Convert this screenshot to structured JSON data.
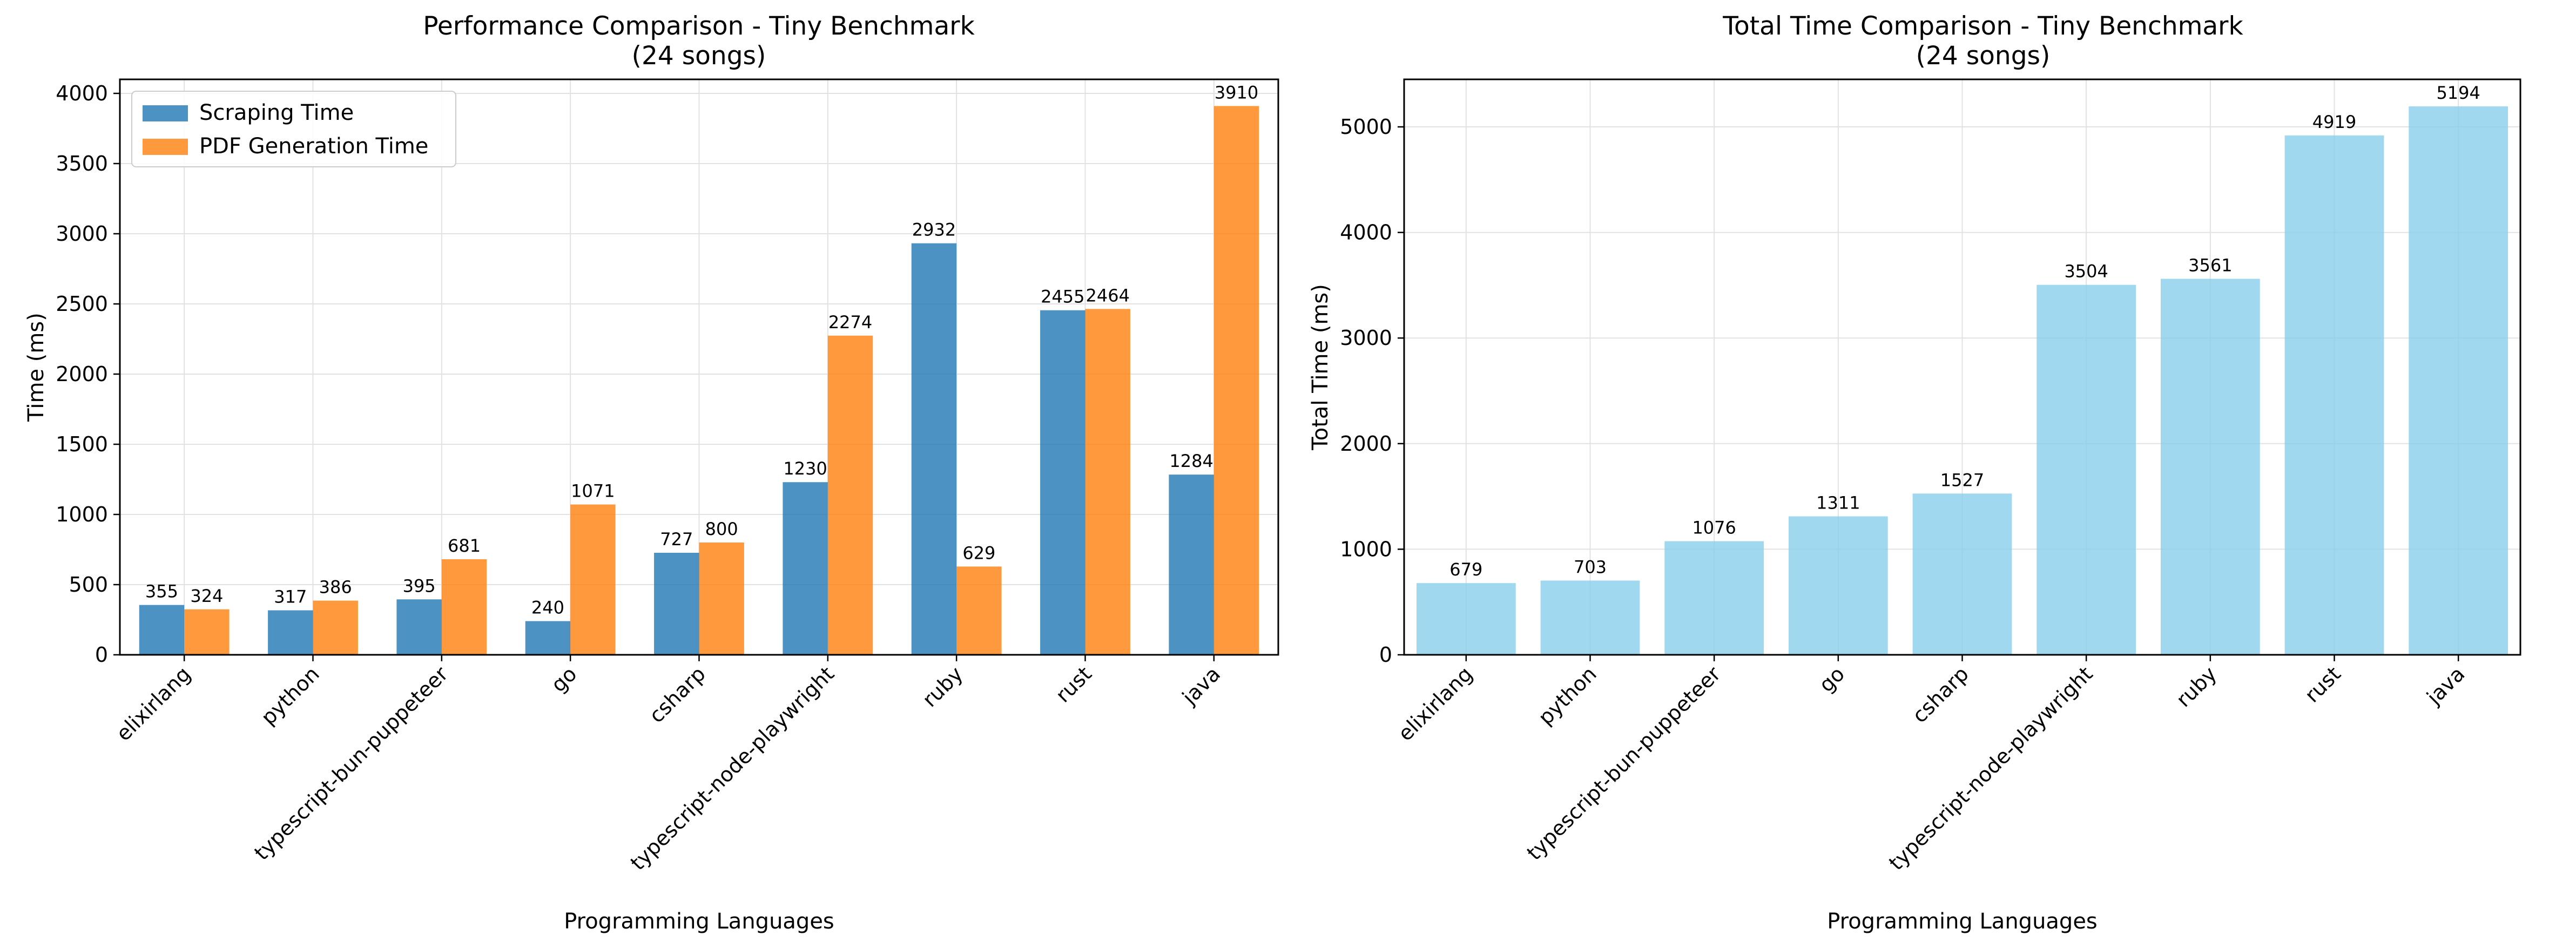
{
  "chart_data": [
    {
      "type": "bar",
      "title": "Performance Comparison - Tiny Benchmark\n(24 songs)",
      "xlabel": "Programming Languages",
      "ylabel": "Time (ms)",
      "ylim": [
        0,
        4100
      ],
      "yticks": [
        0,
        500,
        1000,
        1500,
        2000,
        2500,
        3000,
        3500,
        4000
      ],
      "grid": true,
      "legend_position": "top-left",
      "categories": [
        "elixirlang",
        "python",
        "typescript-bun-puppeteer",
        "go",
        "csharp",
        "typescript-node-playwright",
        "ruby",
        "rust",
        "java"
      ],
      "series": [
        {
          "name": "Scraping Time",
          "color": "#1f77b4",
          "values": [
            355,
            317,
            395,
            240,
            727,
            1230,
            2932,
            2455,
            1284
          ]
        },
        {
          "name": "PDF Generation Time",
          "color": "#ff7f0e",
          "values": [
            324,
            386,
            681,
            1071,
            800,
            2274,
            629,
            2464,
            3910
          ]
        }
      ]
    },
    {
      "type": "bar",
      "title": "Total Time Comparison - Tiny Benchmark\n(24 songs)",
      "xlabel": "Programming Languages",
      "ylabel": "Total Time (ms)",
      "ylim": [
        0,
        5450
      ],
      "yticks": [
        0,
        1000,
        2000,
        3000,
        4000,
        5000
      ],
      "grid": true,
      "categories": [
        "elixirlang",
        "python",
        "typescript-bun-puppeteer",
        "go",
        "csharp",
        "typescript-node-playwright",
        "ruby",
        "rust",
        "java"
      ],
      "series": [
        {
          "color": "#87ceeb",
          "values": [
            679,
            703,
            1076,
            1311,
            1527,
            3504,
            3561,
            4919,
            5194
          ]
        }
      ]
    }
  ]
}
